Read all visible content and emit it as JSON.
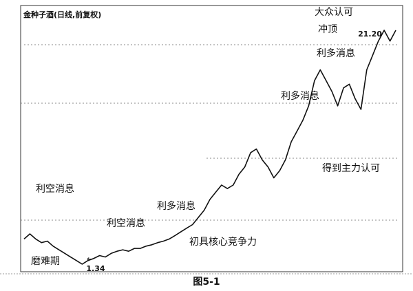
{
  "chart_data": {
    "type": "line",
    "title": "金种子酒(日线,前复权)",
    "caption": "图5-1",
    "ylim": [
      0.7,
      23.3
    ],
    "color": "#111111",
    "series": [
      {
        "name": null,
        "color": "#111111",
        "values": [
          3.48,
          3.91,
          3.48,
          3.17,
          3.3,
          2.87,
          2.56,
          2.26,
          1.95,
          1.65,
          1.34,
          1.65,
          1.83,
          2.07,
          1.95,
          2.26,
          2.44,
          2.56,
          2.44,
          2.68,
          2.68,
          2.87,
          2.99,
          3.17,
          3.3,
          3.48,
          3.78,
          4.09,
          4.4,
          4.7,
          5.31,
          5.92,
          6.84,
          7.45,
          8.06,
          7.76,
          8.06,
          8.98,
          9.59,
          10.81,
          11.12,
          10.2,
          9.59,
          8.67,
          9.28,
          10.2,
          11.73,
          12.64,
          13.56,
          14.78,
          16.92,
          17.84,
          16.92,
          16.0,
          14.78,
          16.31,
          16.62,
          15.39,
          14.48,
          17.84,
          19.06,
          20.28,
          21.2,
          20.28,
          21.2
        ],
        "value_labels": [
          null,
          null,
          null,
          null,
          null,
          null,
          null,
          null,
          null,
          null,
          "1.34",
          null,
          null,
          null,
          null,
          null,
          null,
          null,
          null,
          null,
          null,
          null,
          null,
          null,
          null,
          null,
          null,
          null,
          null,
          null,
          null,
          null,
          null,
          null,
          null,
          null,
          null,
          null,
          null,
          null,
          null,
          null,
          null,
          null,
          null,
          null,
          null,
          null,
          null,
          null,
          null,
          null,
          null,
          null,
          null,
          null,
          null,
          null,
          null,
          null,
          null,
          null,
          "21.20",
          null,
          null
        ]
      }
    ],
    "annotations": [
      "大众认可",
      "冲顶",
      "利多消息",
      "利多消息",
      "得到主力认可",
      "利空消息",
      "利多消息",
      "利空消息",
      "初具核心竞争力",
      "磨难期"
    ]
  }
}
